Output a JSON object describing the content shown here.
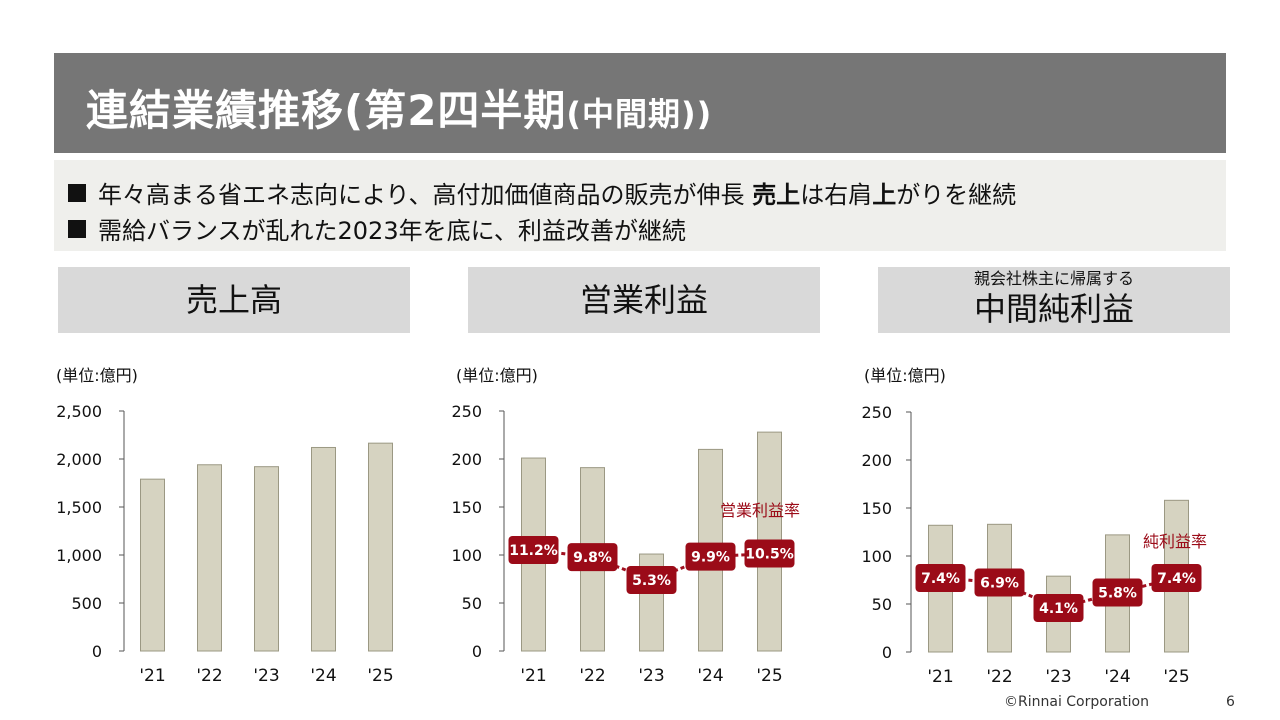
{
  "slide": {
    "title_main": "連結業績推移(第2四半期",
    "title_sub": "(中間期))",
    "bullets": [
      {
        "text": "年々高まる省エネ志向により、高付加価値商品の販売が伸長 ",
        "emph_a": "売上",
        "mid": "は右肩",
        "emph_b": "上",
        "tail": "がりを継続"
      },
      {
        "text": "需給バランスが乱れた2023年を底に、利益改善が継続"
      }
    ],
    "panels": [
      {
        "title": "売上高"
      },
      {
        "title": "営業利益"
      },
      {
        "subtitle": "親会社株主に帰属する",
        "title": "中間純利益"
      }
    ],
    "footer": {
      "copyright": "©Rinnai Corporation",
      "page": "6"
    }
  },
  "colors": {
    "title_bar": "#767676",
    "bar_fill": "#d6d3c1",
    "bar_stroke": "#9b9883",
    "rate_fill": "#9b0b18",
    "rate_line": "#a01020"
  },
  "chart_data": [
    {
      "type": "bar",
      "unit_label": "(単位:億円)",
      "categories": [
        "'21",
        "'22",
        "'23",
        "'24",
        "'25"
      ],
      "values": [
        1790,
        1940,
        1920,
        2120,
        2165
      ],
      "ylim": [
        0,
        2500
      ],
      "yticks": [
        0,
        500,
        1000,
        1500,
        2000,
        2500
      ],
      "ytick_labels": [
        "0",
        "500",
        "1,000",
        "1,500",
        "2,000",
        "2,500"
      ]
    },
    {
      "type": "bar",
      "unit_label": "(単位:億円)",
      "categories": [
        "'21",
        "'22",
        "'23",
        "'24",
        "'25"
      ],
      "values": [
        201,
        191,
        101,
        210,
        228
      ],
      "ylim": [
        0,
        250
      ],
      "yticks": [
        0,
        50,
        100,
        150,
        200,
        250
      ],
      "ytick_labels": [
        "0",
        "50",
        "100",
        "150",
        "200",
        "250"
      ],
      "rate": {
        "name": "営業利益率",
        "labels": [
          "11.2%",
          "9.8%",
          "5.3%",
          "9.9%",
          "10.5%"
        ],
        "values": [
          11.2,
          9.8,
          5.3,
          9.9,
          10.5
        ]
      }
    },
    {
      "type": "bar",
      "unit_label": "(単位:億円)",
      "categories": [
        "'21",
        "'22",
        "'23",
        "'24",
        "'25"
      ],
      "values": [
        132,
        133,
        79,
        122,
        158
      ],
      "ylim": [
        0,
        250
      ],
      "yticks": [
        0,
        50,
        100,
        150,
        200,
        250
      ],
      "ytick_labels": [
        "0",
        "50",
        "100",
        "150",
        "200",
        "250"
      ],
      "rate": {
        "name": "純利益率",
        "labels": [
          "7.4%",
          "6.9%",
          "4.1%",
          "5.8%",
          "7.4%"
        ],
        "values": [
          7.4,
          6.9,
          4.1,
          5.8,
          7.4
        ]
      }
    }
  ]
}
